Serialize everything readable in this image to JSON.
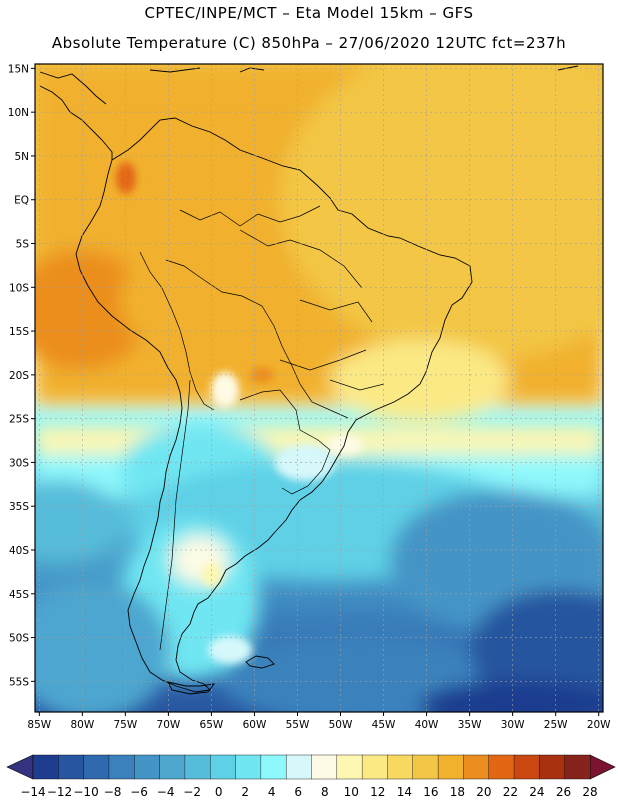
{
  "header": {
    "line1": "CPTEC/INPE/MCT –  Eta Model 15km – GFS",
    "line2": "Absolute Temperature (C) 850hPa – 27/06/2020 12UTC fct=237h"
  },
  "map": {
    "lat_labels": [
      "15N",
      "10N",
      "5N",
      "EQ",
      "5S",
      "10S",
      "15S",
      "20S",
      "25S",
      "30S",
      "35S",
      "40S",
      "45S",
      "50S",
      "55S"
    ],
    "lon_labels": [
      "85W",
      "80W",
      "75W",
      "70W",
      "65W",
      "60W",
      "55W",
      "50W",
      "45W",
      "40W",
      "35W",
      "30W",
      "25W",
      "20W"
    ],
    "lat_range": [
      15.5,
      -58.5
    ],
    "lon_range": [
      -85.5,
      -19.5
    ]
  },
  "colorbar": {
    "labels": [
      "-14",
      "-12",
      "-10",
      "-8",
      "-6",
      "-4",
      "-2",
      "0",
      "2",
      "4",
      "6",
      "8",
      "10",
      "12",
      "14",
      "16",
      "18",
      "20",
      "22",
      "24",
      "26",
      "28"
    ],
    "colors": [
      "#1f3d8f",
      "#27559f",
      "#2f6aae",
      "#3b82bd",
      "#4594c6",
      "#4ea6cf",
      "#57bcd9",
      "#5fd0e6",
      "#6fe6f2",
      "#8ff8fc",
      "#d6f8fb",
      "#fdfbe5",
      "#fdf7b2",
      "#fbe985",
      "#f7d860",
      "#f3c645",
      "#f1b12d",
      "#eb8e1f",
      "#e26614",
      "#c94812",
      "#a83210",
      "#86231d"
    ],
    "left_cap": "#34337f",
    "right_cap": "#7a1430"
  }
}
